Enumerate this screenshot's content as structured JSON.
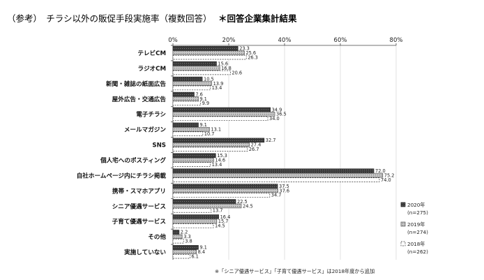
{
  "header": {
    "title": "（参考）　チラシ以外の販促手段実施率（複数回答）",
    "subtitle": "＊回答企業集計結果"
  },
  "note": "※「シニア優遇サービス」「子育て優遇サービス」は2018年度から追加",
  "colors": {
    "s2020": "#3a3a3a",
    "s2019": "#a9a9a9",
    "s2018": "#ffffff",
    "grid": "#d9d9d9",
    "axis": "#444444"
  },
  "chart_data": {
    "type": "bar",
    "orientation": "horizontal",
    "xlim": [
      0,
      80
    ],
    "ticks": [
      "0%",
      "20%",
      "40%",
      "60%",
      "80%"
    ],
    "categories": [
      "テレビCM",
      "ラジオCM",
      "新聞・雑誌の紙面広告",
      "屋外広告・交通広告",
      "電子チラシ",
      "メールマガジン",
      "SNS",
      "個人宅へのポスティング",
      "自社ホームページ内にチラシ掲載",
      "携帯・スマホアプリ",
      "シニア優遇サービス",
      "子育て優遇サービス",
      "その他",
      "実施していない"
    ],
    "series": [
      {
        "name": "2020年",
        "n": "(n=275)",
        "values": [
          23.3,
          15.6,
          10.5,
          7.6,
          34.9,
          9.1,
          32.7,
          15.3,
          72.0,
          37.5,
          22.5,
          16.4,
          2.2,
          9.1
        ]
      },
      {
        "name": "2019年",
        "n": "(n=274)",
        "values": [
          25.6,
          16.8,
          13.9,
          9.1,
          36.5,
          13.1,
          27.4,
          14.6,
          75.2,
          37.6,
          24.5,
          15.7,
          3.3,
          8.4
        ]
      },
      {
        "name": "2018年",
        "n": "(n=262)",
        "values": [
          26.3,
          20.6,
          13.4,
          9.9,
          34.0,
          10.7,
          26.7,
          13.4,
          74.0,
          34.7,
          13.7,
          14.5,
          3.8,
          6.1
        ]
      }
    ],
    "legend_position": "right"
  }
}
